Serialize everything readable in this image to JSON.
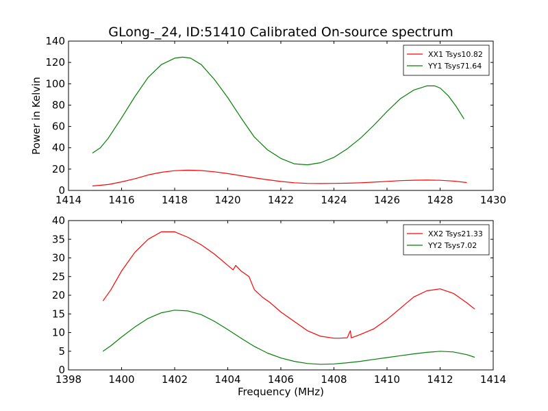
{
  "figure": {
    "title": "GLong-_24, ID:51410 Calibrated On-source spectrum"
  },
  "chart_data": [
    {
      "type": "line",
      "title": "GLong-_24, ID:51410 Calibrated On-source spectrum",
      "xlabel": "",
      "ylabel": "Power in Kelvin",
      "xlim": [
        1414,
        1430
      ],
      "ylim": [
        0,
        140
      ],
      "xticks": [
        1414,
        1416,
        1418,
        1420,
        1422,
        1424,
        1426,
        1428,
        1430
      ],
      "yticks": [
        0,
        20,
        40,
        60,
        80,
        100,
        120,
        140
      ],
      "grid": false,
      "legend_position": "top-right",
      "series": [
        {
          "name": "XX1 Tsys10.82",
          "color": "#ff0000",
          "x": [
            1414.9,
            1415.5,
            1416,
            1416.5,
            1417,
            1417.5,
            1418,
            1418.5,
            1419,
            1419.5,
            1420,
            1420.5,
            1421,
            1421.5,
            1422,
            1422.5,
            1423,
            1423.5,
            1424,
            1424.5,
            1425,
            1425.5,
            1426,
            1426.5,
            1427,
            1427.5,
            1428,
            1428.5,
            1429
          ],
          "y": [
            4.2,
            5.5,
            8.0,
            11.0,
            14.5,
            17.0,
            18.5,
            19.0,
            18.6,
            17.5,
            15.8,
            13.8,
            11.8,
            10.0,
            8.4,
            7.2,
            6.6,
            6.5,
            6.6,
            6.8,
            7.2,
            7.8,
            8.5,
            9.2,
            9.6,
            9.7,
            9.5,
            8.8,
            7.4
          ]
        },
        {
          "name": "YY1 Tsys71.64",
          "color": "#008000",
          "x": [
            1414.9,
            1415.2,
            1415.5,
            1416,
            1416.5,
            1417,
            1417.5,
            1418,
            1418.3,
            1418.6,
            1419,
            1419.5,
            1420,
            1420.5,
            1421,
            1421.5,
            1422,
            1422.5,
            1423,
            1423.5,
            1424,
            1424.5,
            1425,
            1425.5,
            1426,
            1426.5,
            1427,
            1427.5,
            1427.8,
            1428,
            1428.3,
            1428.6,
            1428.9
          ],
          "y": [
            35,
            40,
            49,
            68,
            88,
            106,
            118,
            124,
            125,
            124,
            118,
            104,
            87,
            68,
            50,
            38,
            30,
            25,
            24,
            26,
            31,
            39,
            49,
            61,
            74,
            86,
            94,
            98,
            98,
            96,
            89,
            79,
            67
          ]
        }
      ]
    },
    {
      "type": "line",
      "title": "",
      "xlabel": "Frequency (MHz)",
      "ylabel": "",
      "xlim": [
        1398,
        1414
      ],
      "ylim": [
        0,
        40
      ],
      "xticks": [
        1398,
        1400,
        1402,
        1404,
        1406,
        1408,
        1410,
        1412,
        1414
      ],
      "yticks": [
        0,
        5,
        10,
        15,
        20,
        25,
        30,
        35,
        40
      ],
      "grid": false,
      "legend_position": "top-right",
      "series": [
        {
          "name": "XX2 Tsys21.33",
          "color": "#ff0000",
          "x": [
            1399.3,
            1399.6,
            1400,
            1400.5,
            1401,
            1401.5,
            1402,
            1402.5,
            1403,
            1403.5,
            1404,
            1404.2,
            1404.3,
            1404.5,
            1404.8,
            1405,
            1405.3,
            1405.6,
            1406,
            1406.5,
            1407,
            1407.5,
            1408,
            1408.2,
            1408.5,
            1408.62,
            1408.65,
            1408.7,
            1409,
            1409.5,
            1410,
            1410.5,
            1411,
            1411.5,
            1412,
            1412.5,
            1413,
            1413.3
          ],
          "y": [
            18.5,
            21.5,
            26.5,
            31.5,
            35.0,
            37.0,
            37.0,
            35.5,
            33.5,
            31.0,
            28.0,
            26.8,
            28.0,
            26.5,
            25.0,
            21.5,
            19.5,
            18.0,
            15.5,
            13.0,
            10.5,
            9.0,
            8.5,
            8.5,
            8.6,
            10.5,
            8.6,
            8.7,
            9.5,
            11.0,
            13.5,
            16.5,
            19.5,
            21.2,
            21.7,
            20.5,
            18.0,
            16.3
          ]
        },
        {
          "name": "YY2 Tsys7.02",
          "color": "#008000",
          "x": [
            1399.3,
            1399.6,
            1400,
            1400.5,
            1401,
            1401.5,
            1402,
            1402.5,
            1403,
            1403.5,
            1404,
            1404.5,
            1405,
            1405.5,
            1406,
            1406.5,
            1407,
            1407.5,
            1408,
            1408.5,
            1409,
            1409.5,
            1410,
            1410.5,
            1411,
            1411.5,
            1412,
            1412.5,
            1413,
            1413.3
          ],
          "y": [
            5.0,
            6.5,
            8.8,
            11.5,
            13.8,
            15.3,
            16.0,
            15.8,
            14.8,
            13.0,
            10.8,
            8.5,
            6.3,
            4.5,
            3.2,
            2.3,
            1.7,
            1.5,
            1.6,
            1.9,
            2.3,
            2.8,
            3.3,
            3.8,
            4.3,
            4.7,
            5.0,
            4.8,
            4.1,
            3.4
          ]
        }
      ]
    }
  ]
}
